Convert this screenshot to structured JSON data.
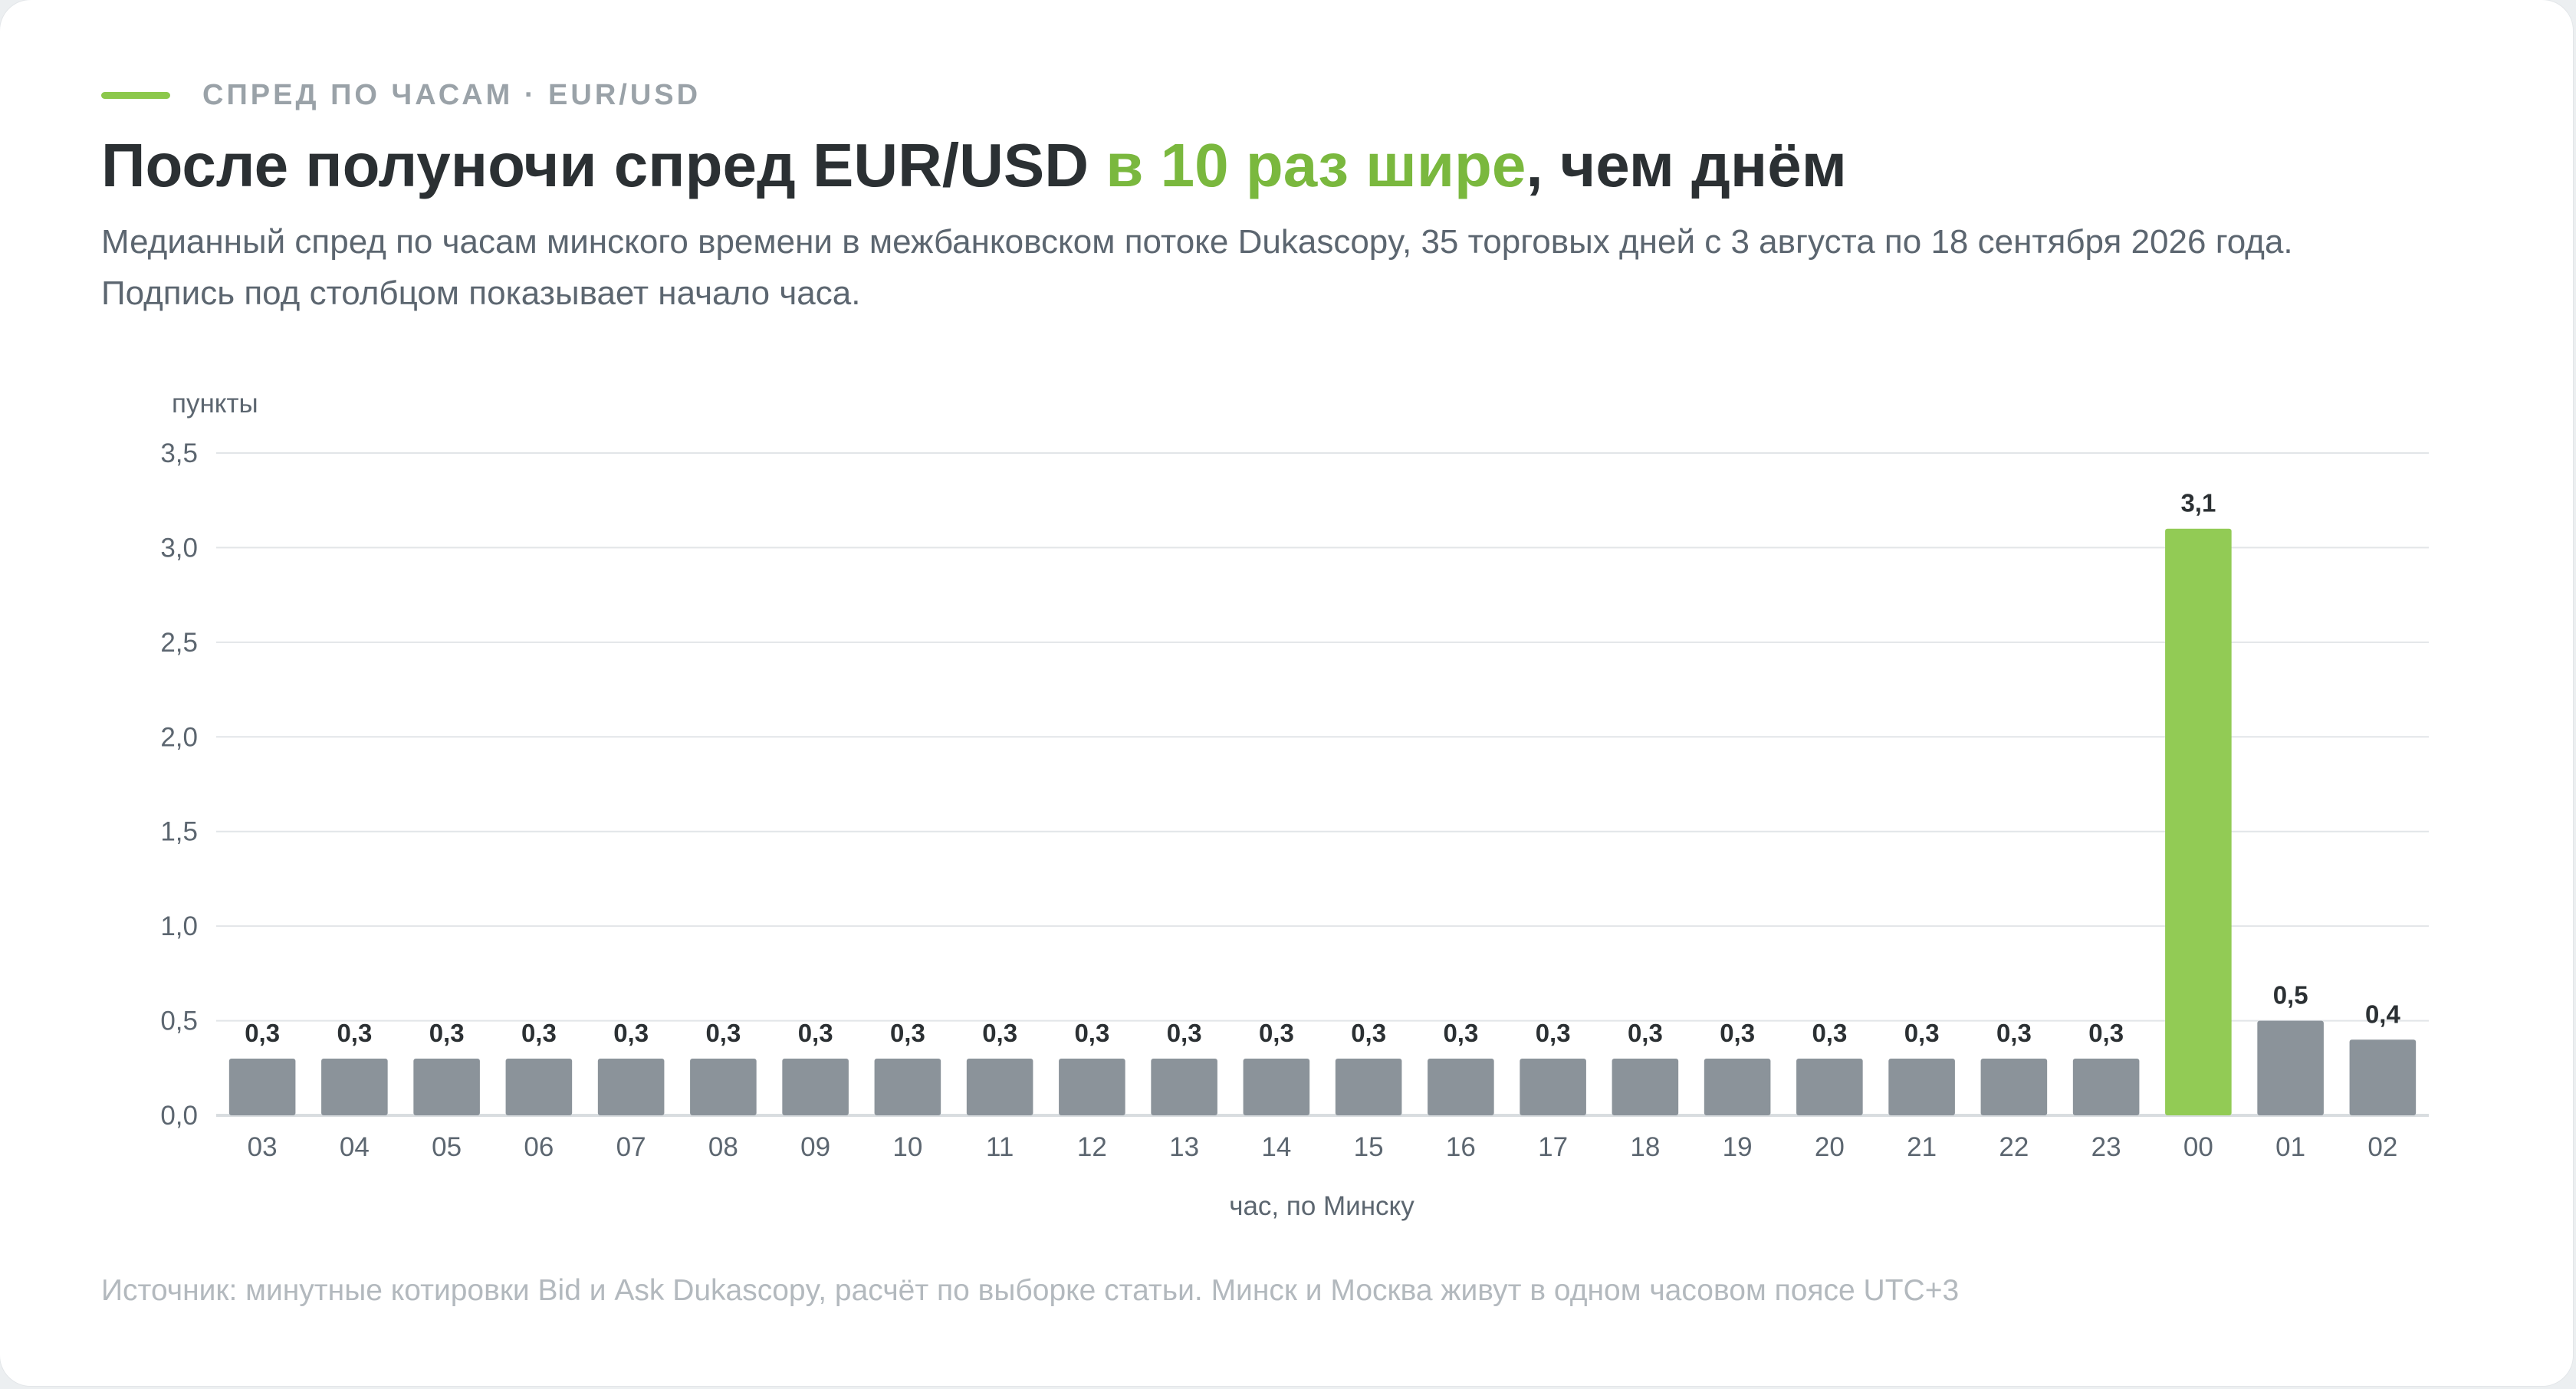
{
  "kicker": {
    "text": "СПРЕД ПО ЧАСАМ · EUR/USD",
    "accent_color": "#8cc84b"
  },
  "headline": {
    "part1": "После полуночи спред EUR/USD ",
    "highlight": "в 10 раз шире",
    "part2": ", чем днём",
    "highlight_color": "#7ab83e"
  },
  "subtitle": {
    "line1": "Медианный спред по часам минского времени в межбанковском потоке Dukascopy, 35 торговых дней с 3 августа по 18 сентября 2026 года.",
    "line2": "Подпись под столбцом показывает начало часа."
  },
  "chart_data": {
    "type": "bar",
    "ylabel": "пункты",
    "xlabel": "час, по Минску",
    "ylim": [
      0,
      3.5
    ],
    "yticks": [
      0,
      0.5,
      1.0,
      1.5,
      2.0,
      2.5,
      3.0,
      3.5
    ],
    "ytick_labels": [
      "0,0",
      "0,5",
      "1,0",
      "1,5",
      "2,0",
      "2,5",
      "3,0",
      "3,5"
    ],
    "grid": true,
    "categories": [
      "03",
      "04",
      "05",
      "06",
      "07",
      "08",
      "09",
      "10",
      "11",
      "12",
      "13",
      "14",
      "15",
      "16",
      "17",
      "18",
      "19",
      "20",
      "21",
      "22",
      "23",
      "00",
      "01",
      "02"
    ],
    "values": [
      0.3,
      0.3,
      0.3,
      0.3,
      0.3,
      0.3,
      0.3,
      0.3,
      0.3,
      0.3,
      0.3,
      0.3,
      0.3,
      0.3,
      0.3,
      0.3,
      0.3,
      0.3,
      0.3,
      0.3,
      0.3,
      3.1,
      0.5,
      0.4
    ],
    "value_labels": [
      "0,3",
      "0,3",
      "0,3",
      "0,3",
      "0,3",
      "0,3",
      "0,3",
      "0,3",
      "0,3",
      "0,3",
      "0,3",
      "0,3",
      "0,3",
      "0,3",
      "0,3",
      "0,3",
      "0,3",
      "0,3",
      "0,3",
      "0,3",
      "0,3",
      "3,1",
      "0,5",
      "0,4"
    ],
    "highlight_category": "00",
    "colors": {
      "bar": "#8b939a",
      "highlight": "#92cb55",
      "grid": "#e2e5e8",
      "axis": "#d9dde0"
    }
  },
  "source": "Источник: минутные котировки Bid и Ask Dukascopy, расчёт по выборке статьи. Минск и Москва живут в одном часовом поясе UTC+3"
}
